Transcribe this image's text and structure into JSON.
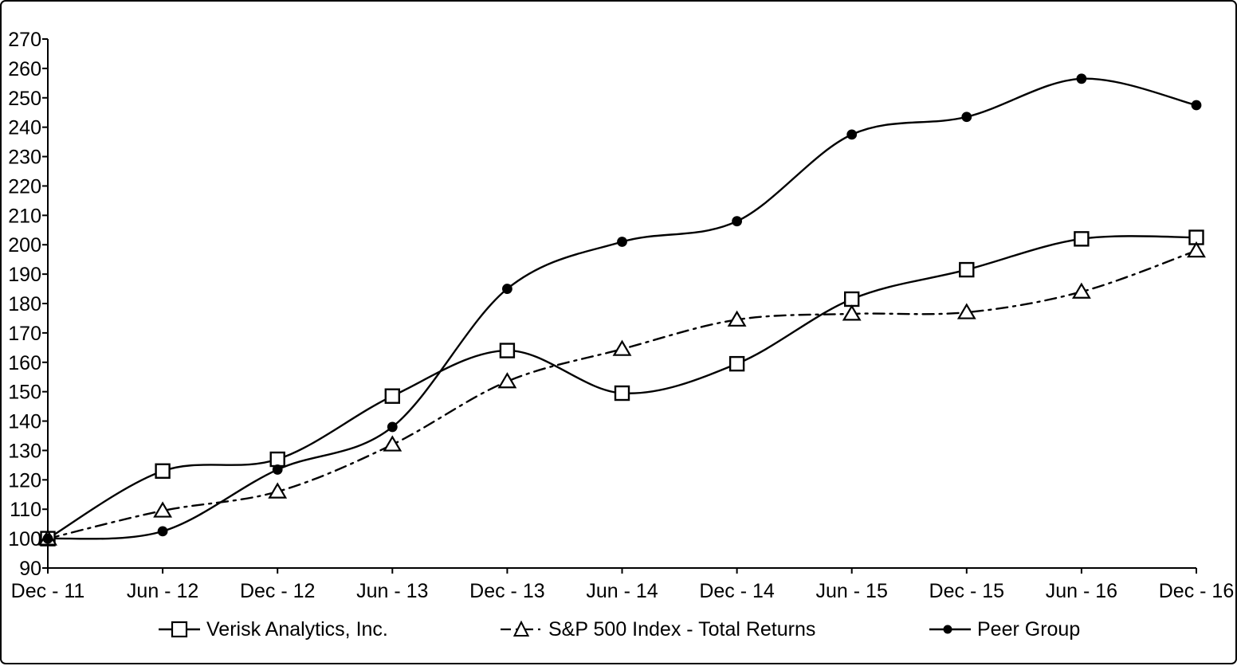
{
  "chart_data": {
    "type": "line",
    "title": "",
    "xlabel": "",
    "ylabel": "",
    "categories": [
      "Dec - 11",
      "Jun - 12",
      "Dec - 12",
      "Jun - 13",
      "Dec - 13",
      "Jun - 14",
      "Dec - 14",
      "Jun - 15",
      "Dec - 15",
      "Jun - 16",
      "Dec - 16"
    ],
    "series": [
      {
        "name": "Verisk Analytics, Inc.",
        "marker": "open-square",
        "line_style": "solid",
        "values": [
          100,
          123,
          127,
          148.5,
          164,
          149.5,
          159.5,
          181.5,
          191.5,
          202,
          202.5
        ]
      },
      {
        "name": "S&P 500 Index - Total Returns",
        "marker": "open-triangle",
        "line_style": "dash-dot",
        "values": [
          100,
          109.5,
          116,
          132,
          153.5,
          164.5,
          174.5,
          176.5,
          177,
          184,
          198
        ]
      },
      {
        "name": "Peer Group",
        "marker": "filled-circle",
        "line_style": "solid",
        "values": [
          100,
          102.5,
          123.5,
          138,
          185,
          201,
          208,
          237.5,
          243.5,
          256.5,
          247.5
        ]
      }
    ],
    "ylim": [
      90,
      270
    ],
    "y_tick_step": 10,
    "y_tick_labels": [
      "90",
      "100",
      "110",
      "120",
      "130",
      "140",
      "150",
      "160",
      "170",
      "180",
      "190",
      "200",
      "210",
      "220",
      "230",
      "240",
      "250",
      "260",
      "270"
    ],
    "grid": false,
    "smooth_lines": true,
    "legend_position": "bottom",
    "line_color": "#000000",
    "text_color": "#000000",
    "background_color": "#ffffff"
  }
}
